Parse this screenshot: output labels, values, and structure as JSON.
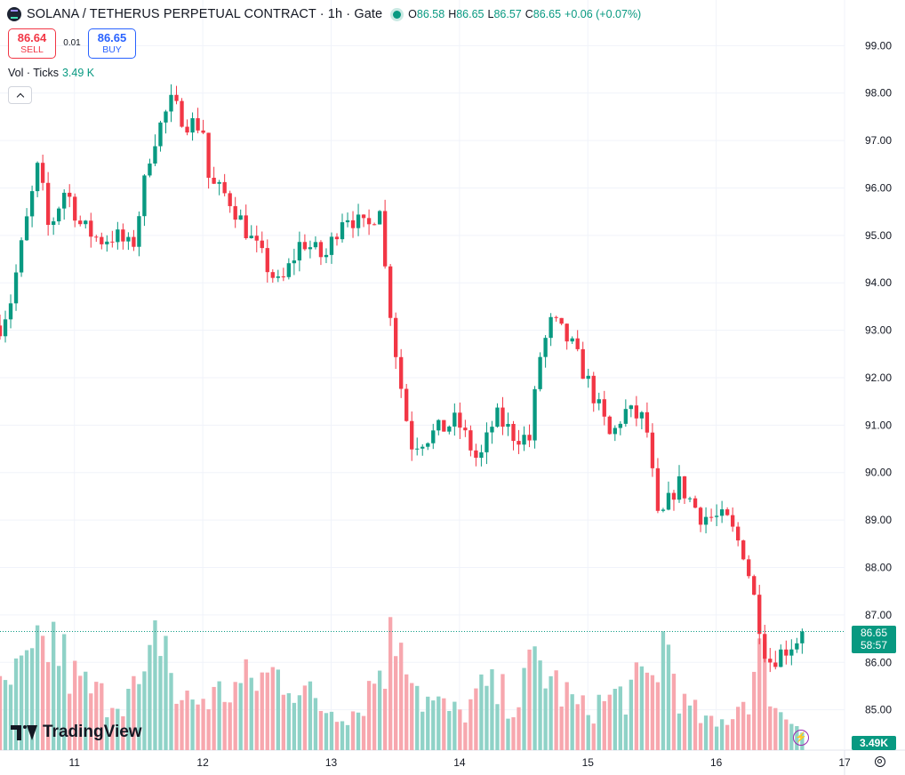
{
  "header": {
    "symbol_title": "SOLANA / TETHERUS PERPETUAL CONTRACT · 1h · Gate",
    "symbol_icon": "solana-logo-icon",
    "ohlc": [
      {
        "key": "O",
        "value": "86.58"
      },
      {
        "key": "H",
        "value": "86.65"
      },
      {
        "key": "L",
        "value": "86.57"
      },
      {
        "key": "C",
        "value": "86.65"
      }
    ],
    "change": "+0.06 (+0.07%)",
    "status_color": "#089981"
  },
  "trade": {
    "sell_price": "86.64",
    "sell_label": "SELL",
    "spread": "0.01",
    "buy_price": "86.65",
    "buy_label": "BUY"
  },
  "volume_legend": {
    "label": "Vol · Ticks",
    "value": "3.49 K"
  },
  "branding": {
    "logo_text": "TradingView"
  },
  "price_scale": {
    "current_price": "86.65",
    "countdown": "58:57",
    "volume_value": "3.49K"
  },
  "colors": {
    "up": "#089981",
    "down": "#f23645",
    "up_volume": "#8fd2c7",
    "down_volume": "#f7a7ae"
  },
  "chart_data": {
    "type": "candlestick",
    "y_ticks": [
      "99.00",
      "98.00",
      "97.00",
      "96.00",
      "95.00",
      "94.00",
      "93.00",
      "92.00",
      "91.00",
      "90.00",
      "89.00",
      "88.00",
      "87.00",
      "86.00",
      "85.00"
    ],
    "x_ticks": [
      "11",
      "12",
      "13",
      "14",
      "15",
      "16",
      "17"
    ],
    "ylim": [
      84.15,
      99.55
    ],
    "xlim": [
      10.42,
      17.0
    ],
    "grid": true,
    "keyframes": [
      [
        10.42,
        93.1
      ],
      [
        10.5,
        93.6
      ],
      [
        10.62,
        95.2
      ],
      [
        10.72,
        96.5
      ],
      [
        10.8,
        95.1
      ],
      [
        10.93,
        96.0
      ],
      [
        11.05,
        95.2
      ],
      [
        11.2,
        94.9
      ],
      [
        11.32,
        95.0
      ],
      [
        11.45,
        94.7
      ],
      [
        11.6,
        96.9
      ],
      [
        11.75,
        97.8
      ],
      [
        11.87,
        97.4
      ],
      [
        12.0,
        97.3
      ],
      [
        12.05,
        96.1
      ],
      [
        12.2,
        95.8
      ],
      [
        12.38,
        94.9
      ],
      [
        12.6,
        93.9
      ],
      [
        12.77,
        94.9
      ],
      [
        12.95,
        94.5
      ],
      [
        13.1,
        95.5
      ],
      [
        13.28,
        95.1
      ],
      [
        13.38,
        95.7
      ],
      [
        13.42,
        94.3
      ],
      [
        13.52,
        92.2
      ],
      [
        13.62,
        90.6
      ],
      [
        13.78,
        90.8
      ],
      [
        13.98,
        91.1
      ],
      [
        14.15,
        90.2
      ],
      [
        14.28,
        91.2
      ],
      [
        14.42,
        90.8
      ],
      [
        14.55,
        90.7
      ],
      [
        14.62,
        92.4
      ],
      [
        14.72,
        93.2
      ],
      [
        14.87,
        92.7
      ],
      [
        15.02,
        91.8
      ],
      [
        15.18,
        90.7
      ],
      [
        15.28,
        91.3
      ],
      [
        15.45,
        91.1
      ],
      [
        15.55,
        88.9
      ],
      [
        15.7,
        89.8
      ],
      [
        15.88,
        89.1
      ],
      [
        16.08,
        89.0
      ],
      [
        16.22,
        88.3
      ],
      [
        16.3,
        87.3
      ],
      [
        16.4,
        86.0
      ],
      [
        16.55,
        86.3
      ],
      [
        16.7,
        86.65
      ]
    ],
    "volume_ylim": [
      0,
      4.2
    ],
    "volume_profile": [
      [
        10.42,
        1.3
      ],
      [
        10.7,
        2.0
      ],
      [
        10.82,
        2.6
      ],
      [
        11.0,
        1.6
      ],
      [
        11.2,
        1.2
      ],
      [
        11.55,
        1.4
      ],
      [
        11.68,
        3.0
      ],
      [
        11.8,
        1.1
      ],
      [
        12.05,
        1.2
      ],
      [
        12.4,
        1.6
      ],
      [
        12.65,
        1.8
      ],
      [
        12.9,
        1.0
      ],
      [
        13.2,
        0.9
      ],
      [
        13.45,
        2.3
      ],
      [
        13.55,
        3.0
      ],
      [
        13.7,
        1.2
      ],
      [
        14.0,
        0.8
      ],
      [
        14.2,
        1.4
      ],
      [
        14.45,
        1.1
      ],
      [
        14.6,
        2.1
      ],
      [
        14.75,
        1.5
      ],
      [
        14.95,
        0.9
      ],
      [
        15.2,
        1.2
      ],
      [
        15.5,
        1.6
      ],
      [
        15.6,
        2.6
      ],
      [
        15.75,
        1.0
      ],
      [
        16.0,
        0.5
      ],
      [
        16.25,
        1.3
      ],
      [
        16.35,
        2.2
      ],
      [
        16.5,
        0.8
      ],
      [
        16.7,
        0.6
      ]
    ],
    "current_price": 86.65
  }
}
